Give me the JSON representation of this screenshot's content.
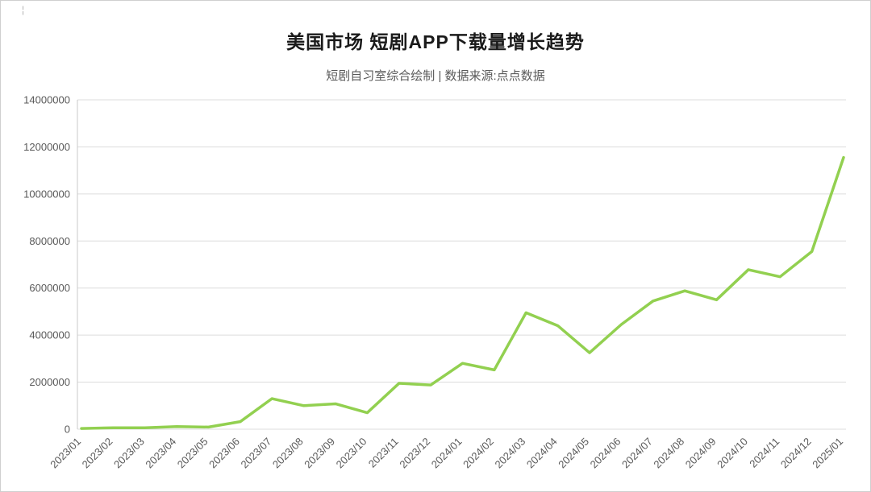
{
  "page": {
    "title_label": "美国市场 短剧APP下载量增长趋势",
    "subtitle_label": "短剧自习室综合绘制 | 数据来源:点点数据",
    "crop_mark": "¦"
  },
  "chart_data": {
    "type": "line",
    "title": "美国市场 短剧APP下载量增长趋势",
    "subtitle": "短剧自习室综合绘制 | 数据来源:点点数据",
    "categories": [
      "2023/01",
      "2023/02",
      "2023/03",
      "2023/04",
      "2023/05",
      "2023/06",
      "2023/07",
      "2023/08",
      "2023/09",
      "2023/10",
      "2023/11",
      "2023/12",
      "2024/01",
      "2024/02",
      "2024/03",
      "2024/04",
      "2024/05",
      "2024/06",
      "2024/07",
      "2024/08",
      "2024/09",
      "2024/10",
      "2024/11",
      "2024/12",
      "2025/01"
    ],
    "values": [
      30000,
      60000,
      60000,
      110000,
      90000,
      320000,
      1300000,
      1000000,
      1080000,
      700000,
      1950000,
      1880000,
      2800000,
      2520000,
      4950000,
      4400000,
      3250000,
      4450000,
      5450000,
      5880000,
      5500000,
      6780000,
      6480000,
      7550000,
      11550000
    ],
    "xlabel": "",
    "ylabel": "",
    "ylim": [
      0,
      14000000
    ],
    "y_tick_step": 2000000,
    "grid": true,
    "legend_position": "none",
    "line_color": "#92d050",
    "grid_color": "#dcdcdc",
    "axis_color": "#c9c9c9",
    "tick_label_color": "#595959"
  }
}
